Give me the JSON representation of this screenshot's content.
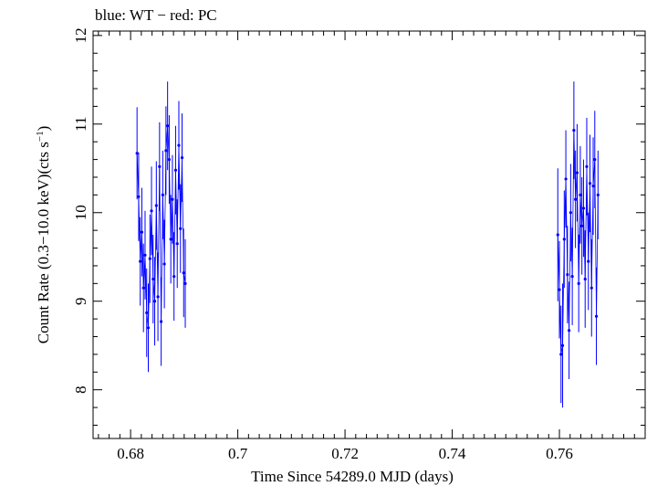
{
  "chart_data": {
    "type": "scatter",
    "title": "blue: WT − red: PC",
    "xlabel": "Time Since 54289.0 MJD (days)",
    "ylabel_main": "Count Rate (0.3−10.0 keV)(cts s",
    "ylabel_sup": "−1",
    "ylabel_close": ")",
    "xlim": [
      0.673,
      0.776
    ],
    "ylim": [
      7.45,
      12.05
    ],
    "x_ticks": [
      {
        "value": 0.68,
        "label": "0.68"
      },
      {
        "value": 0.7,
        "label": "0.7"
      },
      {
        "value": 0.72,
        "label": "0.72"
      },
      {
        "value": 0.74,
        "label": "0.74"
      },
      {
        "value": 0.76,
        "label": "0.76"
      }
    ],
    "y_ticks": [
      {
        "value": 8,
        "label": "8"
      },
      {
        "value": 9,
        "label": "9"
      },
      {
        "value": 10,
        "label": "10"
      },
      {
        "value": 11,
        "label": "11"
      },
      {
        "value": 12,
        "label": "12"
      }
    ],
    "grid": false,
    "series": [
      {
        "name": "WT",
        "color": "#0000ff",
        "xerr": 0.00012,
        "points": [
          {
            "x": 0.6812,
            "y": 10.67,
            "err": 0.52
          },
          {
            "x": 0.6815,
            "y": 10.18,
            "err": 0.5
          },
          {
            "x": 0.6818,
            "y": 9.45,
            "err": 0.5
          },
          {
            "x": 0.6821,
            "y": 9.78,
            "err": 0.5
          },
          {
            "x": 0.6824,
            "y": 9.15,
            "err": 0.5
          },
          {
            "x": 0.6827,
            "y": 9.52,
            "err": 0.5
          },
          {
            "x": 0.683,
            "y": 8.87,
            "err": 0.5
          },
          {
            "x": 0.6833,
            "y": 8.7,
            "err": 0.5
          },
          {
            "x": 0.6836,
            "y": 9.48,
            "err": 0.5
          },
          {
            "x": 0.6839,
            "y": 10.02,
            "err": 0.5
          },
          {
            "x": 0.6842,
            "y": 9.25,
            "err": 0.5
          },
          {
            "x": 0.6845,
            "y": 9.0,
            "err": 0.5
          },
          {
            "x": 0.6848,
            "y": 10.08,
            "err": 0.5
          },
          {
            "x": 0.6851,
            "y": 9.05,
            "err": 0.5
          },
          {
            "x": 0.6854,
            "y": 10.52,
            "err": 0.5
          },
          {
            "x": 0.6857,
            "y": 8.77,
            "err": 0.5
          },
          {
            "x": 0.686,
            "y": 10.2,
            "err": 0.5
          },
          {
            "x": 0.6863,
            "y": 9.42,
            "err": 0.5
          },
          {
            "x": 0.6866,
            "y": 10.7,
            "err": 0.5
          },
          {
            "x": 0.6869,
            "y": 10.98,
            "err": 0.5
          },
          {
            "x": 0.6872,
            "y": 10.6,
            "err": 0.5
          },
          {
            "x": 0.6875,
            "y": 9.7,
            "err": 0.5
          },
          {
            "x": 0.6878,
            "y": 10.15,
            "err": 0.5
          },
          {
            "x": 0.6881,
            "y": 9.28,
            "err": 0.5
          },
          {
            "x": 0.6884,
            "y": 10.48,
            "err": 0.5
          },
          {
            "x": 0.6887,
            "y": 9.65,
            "err": 0.5
          },
          {
            "x": 0.689,
            "y": 10.76,
            "err": 0.5
          },
          {
            "x": 0.6893,
            "y": 9.82,
            "err": 0.5
          },
          {
            "x": 0.6896,
            "y": 10.62,
            "err": 0.5
          },
          {
            "x": 0.6899,
            "y": 9.32,
            "err": 0.5
          },
          {
            "x": 0.6902,
            "y": 9.2,
            "err": 0.5
          }
        ]
      },
      {
        "name": "WT",
        "color": "#0000ff",
        "xerr": 0.00012,
        "points": [
          {
            "x": 0.7597,
            "y": 9.75,
            "err": 0.75
          },
          {
            "x": 0.76,
            "y": 9.13,
            "err": 0.55
          },
          {
            "x": 0.7603,
            "y": 8.4,
            "err": 0.55
          },
          {
            "x": 0.7606,
            "y": 8.5,
            "err": 0.7
          },
          {
            "x": 0.7609,
            "y": 9.7,
            "err": 0.55
          },
          {
            "x": 0.7612,
            "y": 10.38,
            "err": 0.55
          },
          {
            "x": 0.7615,
            "y": 9.3,
            "err": 0.55
          },
          {
            "x": 0.7618,
            "y": 8.67,
            "err": 0.55
          },
          {
            "x": 0.7621,
            "y": 10.0,
            "err": 0.55
          },
          {
            "x": 0.7624,
            "y": 9.28,
            "err": 0.55
          },
          {
            "x": 0.7627,
            "y": 10.93,
            "err": 0.55
          },
          {
            "x": 0.763,
            "y": 10.15,
            "err": 0.55
          },
          {
            "x": 0.7633,
            "y": 10.45,
            "err": 0.55
          },
          {
            "x": 0.7636,
            "y": 9.2,
            "err": 0.55
          },
          {
            "x": 0.7639,
            "y": 10.2,
            "err": 0.55
          },
          {
            "x": 0.7642,
            "y": 9.85,
            "err": 0.55
          },
          {
            "x": 0.7645,
            "y": 10.05,
            "err": 0.55
          },
          {
            "x": 0.7648,
            "y": 9.25,
            "err": 0.55
          },
          {
            "x": 0.7651,
            "y": 10.52,
            "err": 0.55
          },
          {
            "x": 0.7654,
            "y": 9.45,
            "err": 0.55
          },
          {
            "x": 0.7657,
            "y": 10.33,
            "err": 0.55
          },
          {
            "x": 0.766,
            "y": 9.15,
            "err": 0.55
          },
          {
            "x": 0.7663,
            "y": 10.3,
            "err": 0.55
          },
          {
            "x": 0.7666,
            "y": 10.6,
            "err": 0.55
          },
          {
            "x": 0.7669,
            "y": 8.83,
            "err": 0.55
          },
          {
            "x": 0.7672,
            "y": 10.2,
            "err": 0.5
          }
        ]
      }
    ]
  }
}
